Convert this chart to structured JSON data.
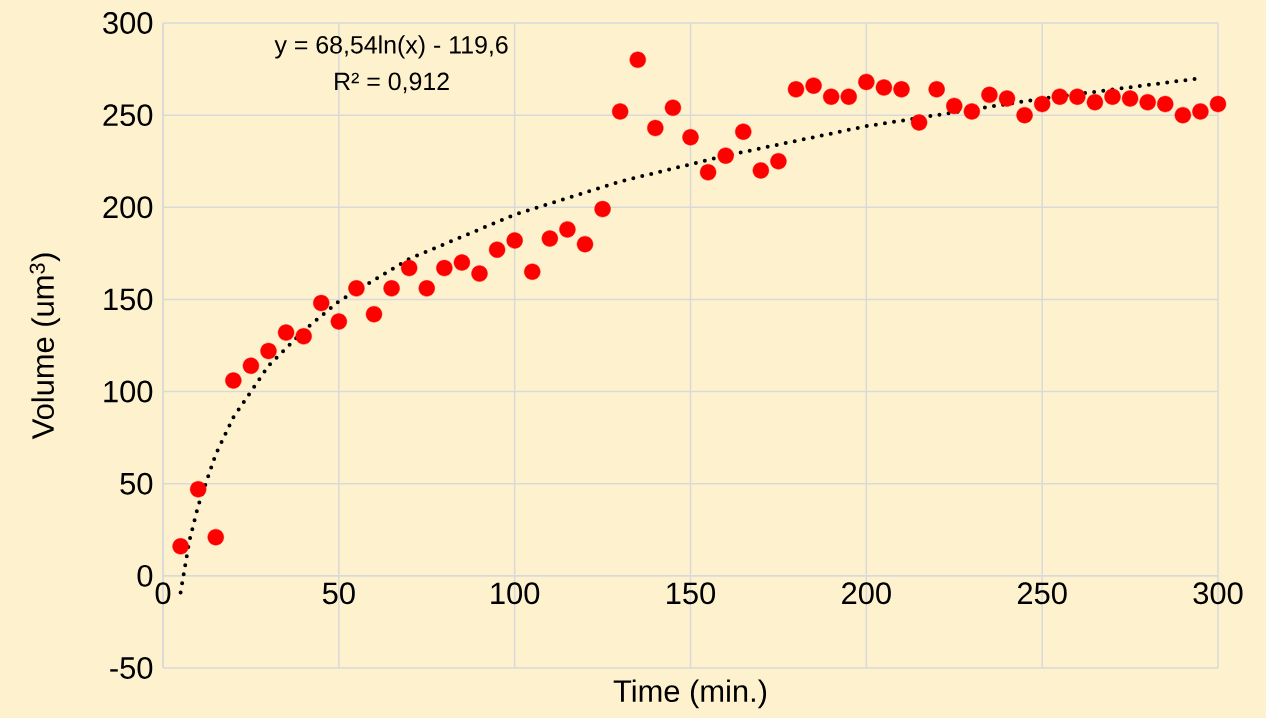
{
  "chart_data": {
    "type": "scatter",
    "xlabel": "Time (min.)",
    "ylabel": "Volume (um$^{3}$)",
    "xlim": [
      0,
      300
    ],
    "ylim": [
      -50,
      300
    ],
    "xticks": [
      0,
      50,
      100,
      150,
      200,
      250,
      300
    ],
    "yticks": [
      -50,
      0,
      50,
      100,
      150,
      200,
      250,
      300
    ],
    "grid": true,
    "annotations": [
      "y = 68,54ln(x) - 119,6",
      "R² = 0,912"
    ],
    "series": [
      {
        "marker": "circle",
        "color": "#ff0000",
        "x": [
          5,
          10,
          15,
          20,
          25,
          30,
          35,
          40,
          45,
          50,
          55,
          60,
          65,
          70,
          75,
          80,
          85,
          90,
          95,
          100,
          105,
          110,
          115,
          120,
          125,
          130,
          135,
          140,
          145,
          150,
          155,
          160,
          165,
          170,
          175,
          180,
          185,
          190,
          195,
          200,
          205,
          210,
          215,
          220,
          225,
          230,
          235,
          240,
          245,
          250,
          255,
          260,
          265,
          270,
          275,
          280,
          285,
          290,
          295,
          300
        ],
        "values": [
          16,
          47,
          21,
          106,
          114,
          122,
          132,
          130,
          148,
          138,
          156,
          142,
          156,
          167,
          156,
          167,
          170,
          164,
          177,
          182,
          165,
          183,
          188,
          180,
          199,
          252,
          280,
          243,
          254,
          238,
          219,
          228,
          241,
          220,
          225,
          264,
          266,
          260,
          260,
          268,
          265,
          264,
          246,
          264,
          255,
          252,
          261,
          259,
          250,
          256,
          260,
          260,
          257,
          260,
          259,
          257,
          256,
          250,
          252,
          256
        ]
      },
      {
        "type": "line",
        "marker": "none",
        "color": "#000000",
        "line_style": "dotted",
        "x": [
          5,
          7.5,
          10,
          15,
          20,
          30,
          40,
          50,
          70,
          100,
          130,
          160,
          200,
          250,
          295
        ],
        "values": [
          -9,
          19,
          38,
          66,
          86,
          114,
          133,
          149,
          172,
          196,
          214,
          228,
          244,
          259,
          270
        ]
      }
    ]
  }
}
